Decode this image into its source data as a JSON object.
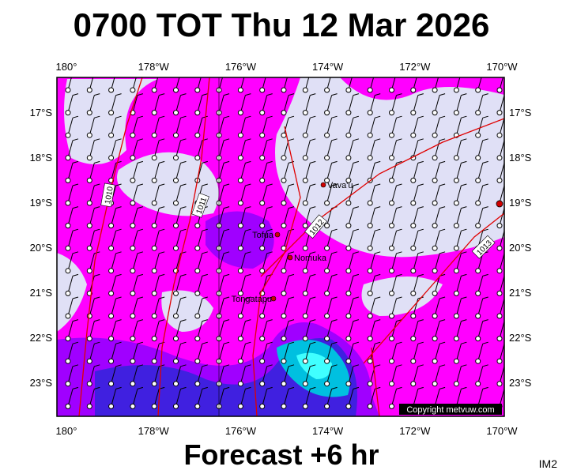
{
  "header": {
    "title": "0700 TOT Thu 12 Mar 2026"
  },
  "footer": {
    "forecast": "Forecast +6 hr",
    "tag": "IM2"
  },
  "map": {
    "lon_labels": [
      "180°",
      "178°W",
      "176°W",
      "174°W",
      "172°W",
      "170°W"
    ],
    "lat_labels": [
      "17°S",
      "18°S",
      "19°S",
      "20°S",
      "21°S",
      "22°S",
      "23°S"
    ],
    "places": [
      "Vava'u",
      "Tofua",
      "Nomuka",
      "Tongatapu"
    ],
    "isobars": [
      "1010",
      "1011",
      "1012",
      "1013"
    ],
    "copyright": "Copyright metvuw.com"
  }
}
